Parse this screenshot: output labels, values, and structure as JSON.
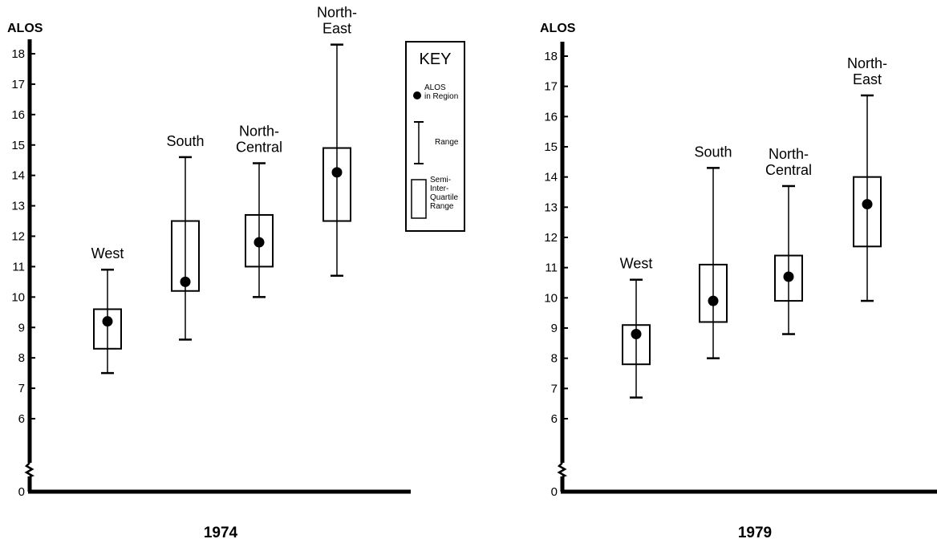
{
  "chart_data": [
    {
      "type": "boxplot",
      "title": "1974",
      "ylabel": "ALOS",
      "yticks": [
        0,
        6,
        7,
        8,
        9,
        10,
        11,
        12,
        13,
        14,
        15,
        16,
        17,
        18
      ],
      "axis_break": true,
      "series": [
        {
          "label": "West",
          "min": 7.5,
          "q1": 8.3,
          "q3": 9.6,
          "max": 10.9,
          "value": 9.2
        },
        {
          "label": "South",
          "min": 8.6,
          "q1": 10.2,
          "q3": 12.5,
          "max": 14.6,
          "value": 10.5
        },
        {
          "label": "North-\nCentral",
          "min": 10.0,
          "q1": 11.0,
          "q3": 12.7,
          "max": 14.4,
          "value": 11.8
        },
        {
          "label": "North-\nEast",
          "min": 10.7,
          "q1": 12.5,
          "q3": 14.9,
          "max": 18.3,
          "value": 14.1
        }
      ]
    },
    {
      "type": "boxplot",
      "title": "1979",
      "ylabel": "ALOS",
      "yticks": [
        0,
        6,
        7,
        8,
        9,
        10,
        11,
        12,
        13,
        14,
        15,
        16,
        17,
        18
      ],
      "axis_break": true,
      "series": [
        {
          "label": "West",
          "min": 6.7,
          "q1": 7.8,
          "q3": 9.1,
          "max": 10.6,
          "value": 8.8
        },
        {
          "label": "South",
          "min": 8.0,
          "q1": 9.2,
          "q3": 11.1,
          "max": 14.3,
          "value": 9.9
        },
        {
          "label": "North-\nCentral",
          "min": 8.8,
          "q1": 9.9,
          "q3": 11.4,
          "max": 13.7,
          "value": 10.7
        },
        {
          "label": "North-\nEast",
          "min": 9.9,
          "q1": 11.7,
          "q3": 14.0,
          "max": 16.7,
          "value": 13.1
        }
      ]
    }
  ],
  "key": {
    "title": "KEY",
    "items": [
      {
        "symbol": "dot",
        "label": "ALOS\nin Region"
      },
      {
        "symbol": "range",
        "label": "Range"
      },
      {
        "symbol": "box",
        "label": "Semi-\nInter-\nQuartile\nRange"
      }
    ]
  }
}
